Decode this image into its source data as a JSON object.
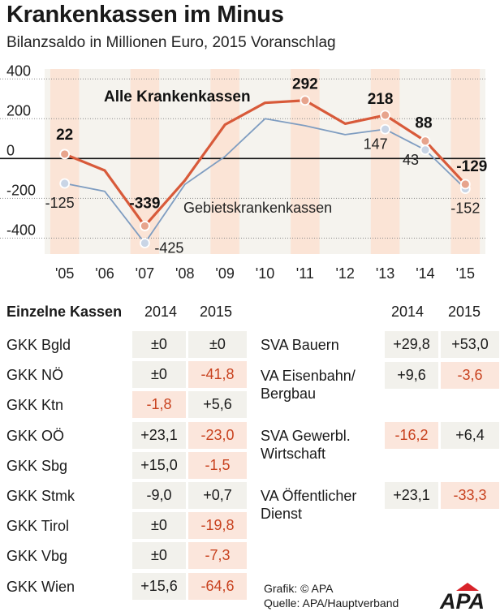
{
  "header": {
    "title": "Krankenkassen im Minus",
    "subtitle": "Bilanzsaldo in Millionen Euro, 2015 Voranschlag"
  },
  "chart_data": {
    "type": "line",
    "categories": [
      "'05",
      "'06",
      "'07",
      "'08",
      "'09",
      "'10",
      "'11",
      "'12",
      "'13",
      "'14",
      "'15"
    ],
    "ylim": [
      -480,
      450
    ],
    "yticks": [
      400,
      200,
      0,
      -200,
      -400
    ],
    "series": [
      {
        "name": "Alle Krankenkassen",
        "color": "#d85a3a",
        "values": [
          22,
          -60,
          -339,
          -110,
          170,
          280,
          292,
          175,
          218,
          88,
          -129
        ]
      },
      {
        "name": "Gebietskrankenkassen",
        "color": "#7f9dc1",
        "values": [
          -125,
          -165,
          -425,
          -130,
          10,
          200,
          165,
          120,
          147,
          43,
          -152
        ]
      }
    ],
    "labels_alle": [
      {
        "index": 0,
        "text": "22"
      },
      {
        "index": 2,
        "text": "-339"
      },
      {
        "index": 6,
        "text": "292"
      },
      {
        "index": 8,
        "text": "218"
      },
      {
        "index": 9,
        "text": "88"
      },
      {
        "index": 10,
        "text": "-129"
      }
    ],
    "labels_gebiet": [
      {
        "index": 0,
        "text": "-125"
      },
      {
        "index": 2,
        "text": "-425"
      },
      {
        "index": 8,
        "text": "147"
      },
      {
        "index": 9,
        "text": "43"
      },
      {
        "index": 10,
        "text": "-152"
      }
    ],
    "legend": {
      "alle": "Alle Krankenkassen",
      "gebiet": "Gebietskrankenkassen"
    },
    "highlight_years": [
      "'05",
      "'07",
      "'09",
      "'11",
      "'13",
      "'15"
    ]
  },
  "table": {
    "title": "Einzelne Kassen",
    "year1": "2014",
    "year2": "2015",
    "left": [
      {
        "name": "GKK Bgld",
        "v2014": "±0",
        "v2015": "±0",
        "n2014": false,
        "n2015": false
      },
      {
        "name": "GKK NÖ",
        "v2014": "±0",
        "v2015": "-41,8",
        "n2014": false,
        "n2015": true
      },
      {
        "name": "GKK Ktn",
        "v2014": "-1,8",
        "v2015": "+5,6",
        "n2014": true,
        "n2015": false
      },
      {
        "name": "GKK OÖ",
        "v2014": "+23,1",
        "v2015": "-23,0",
        "n2014": false,
        "n2015": true
      },
      {
        "name": "GKK Sbg",
        "v2014": "+15,0",
        "v2015": "-1,5",
        "n2014": false,
        "n2015": true
      },
      {
        "name": "GKK Stmk",
        "v2014": "-9,0",
        "v2015": "+0,7",
        "n2014": false,
        "n2015": false
      },
      {
        "name": "GKK Tirol",
        "v2014": "±0",
        "v2015": "-19,8",
        "n2014": false,
        "n2015": true
      },
      {
        "name": "GKK Vbg",
        "v2014": "±0",
        "v2015": "-7,3",
        "n2014": false,
        "n2015": true
      },
      {
        "name": "GKK Wien",
        "v2014": "+15,6",
        "v2015": "-64,6",
        "n2014": false,
        "n2015": true
      }
    ],
    "right": [
      {
        "name": "SVA Bauern",
        "v2014": "+29,8",
        "v2015": "+53,0",
        "n2014": false,
        "n2015": false
      },
      {
        "name": "VA Eisenbahn/\nBergbau",
        "v2014": "+9,6",
        "v2015": "-3,6",
        "n2014": false,
        "n2015": true
      },
      {
        "name": "SVA Gewerbl.\nWirtschaft",
        "v2014": "-16,2",
        "v2015": "+6,4",
        "n2014": true,
        "n2015": false
      },
      {
        "name": "VA Öffentlicher\nDienst",
        "v2014": "+23,1",
        "v2015": "-33,3",
        "n2014": false,
        "n2015": true
      }
    ]
  },
  "footer": {
    "grafik": "Grafik: © APA",
    "quelle": "Quelle: APA/Hauptverband",
    "logo": "APA"
  }
}
